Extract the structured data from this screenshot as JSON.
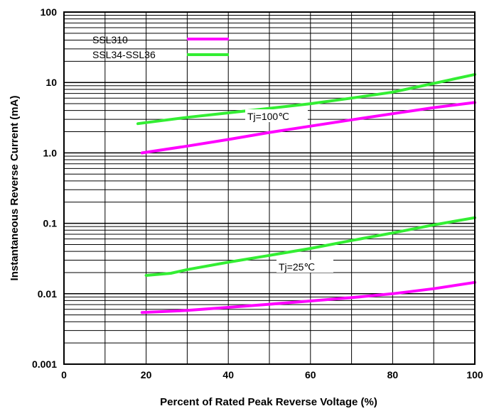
{
  "chart_data": {
    "type": "line",
    "xlabel": "Percent of Rated Peak Reverse Voltage (%)",
    "ylabel": "Instantaneous Reverse Current (mA)",
    "xlim": [
      0,
      100
    ],
    "ylim": [
      0.001,
      100
    ],
    "y_scale": "log",
    "grid": true,
    "x_ticks": [
      0,
      20,
      40,
      60,
      80,
      100
    ],
    "x_tick_labels": [
      "0",
      "20",
      "40",
      "60",
      "80",
      "100"
    ],
    "y_ticks": [
      0.001,
      0.01,
      0.1,
      1,
      10,
      100
    ],
    "y_tick_labels": [
      "0.001",
      "0.01",
      "0.1",
      "1.0",
      "10",
      "100"
    ],
    "legend_position": "top-left",
    "series": [
      {
        "name": "SSL310",
        "color": "#ff00ff",
        "condition": "Tj=100℃",
        "x": [
          19,
          30,
          40,
          50,
          60,
          70,
          80,
          90,
          100
        ],
        "y": [
          1.0,
          1.25,
          1.55,
          1.95,
          2.4,
          2.95,
          3.6,
          4.4,
          5.2
        ]
      },
      {
        "name": "SSL34-SSL36",
        "color": "#33ee33",
        "condition": "Tj=100℃",
        "x": [
          18,
          30,
          40,
          50,
          60,
          70,
          80,
          90,
          100
        ],
        "y": [
          2.6,
          3.2,
          3.7,
          4.3,
          5.0,
          6.0,
          7.3,
          9.7,
          13.0
        ]
      },
      {
        "name": "SSL310",
        "color": "#ff00ff",
        "condition": "Tj=25℃",
        "x": [
          19,
          30,
          40,
          50,
          60,
          70,
          80,
          90,
          100
        ],
        "y": [
          0.0054,
          0.0058,
          0.0064,
          0.0071,
          0.0079,
          0.0088,
          0.01,
          0.0118,
          0.0145
        ]
      },
      {
        "name": "SSL34-SSL36",
        "color": "#33ee33",
        "condition": "Tj=25℃",
        "x": [
          20,
          26,
          30,
          40,
          50,
          60,
          70,
          80,
          90,
          100
        ],
        "y": [
          0.0182,
          0.0195,
          0.022,
          0.028,
          0.035,
          0.044,
          0.057,
          0.073,
          0.095,
          0.12
        ]
      }
    ],
    "legend": [
      {
        "label": "SSL310",
        "color": "#ff00ff"
      },
      {
        "label": "SSL34-SSL36",
        "color": "#33ee33"
      }
    ],
    "annotations": [
      {
        "text": "Tj=100℃",
        "x": 64,
        "y": 2.9
      },
      {
        "text": "Tj=25℃",
        "x": 63,
        "y": 0.0245
      }
    ]
  }
}
